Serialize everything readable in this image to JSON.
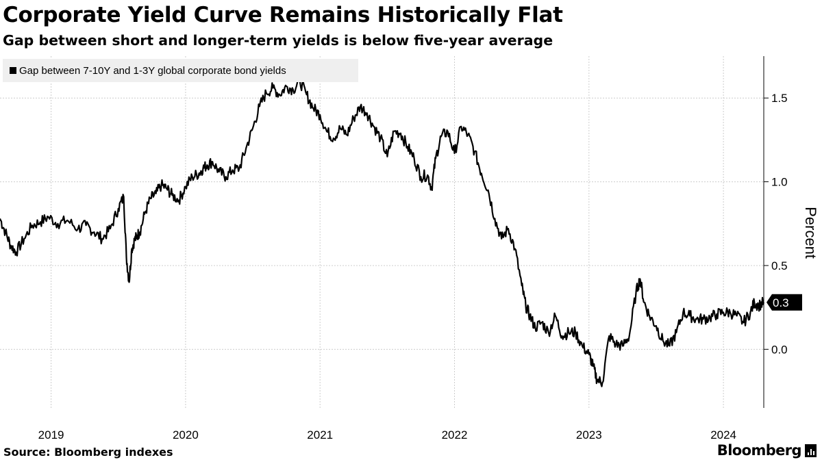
{
  "header": {
    "title": "Corporate Yield Curve Remains Historically Flat",
    "subtitle": "Gap between short and longer-term yields is below five-year average"
  },
  "footer": {
    "source": "Source: Bloomberg indexes",
    "brand": "Bloomberg"
  },
  "colors": {
    "line": "#000000",
    "grid": "#cccccc",
    "legend_bg": "#efefef",
    "background": "#ffffff"
  },
  "chart_data": {
    "type": "line",
    "title": "Corporate Yield Curve Remains Historically Flat",
    "subtitle": "Gap between short and longer-term yields is below five-year average",
    "xlabel": "",
    "ylabel": "Percent",
    "x_range": [
      2018.62,
      2024.3
    ],
    "ylim": [
      -0.35,
      1.75
    ],
    "yticks": [
      0.0,
      0.5,
      1.0,
      1.5
    ],
    "ytick_labels": [
      "0.0",
      "0.5",
      "1.0",
      "1.5"
    ],
    "x_tick_positions": [
      2019.0,
      2020.0,
      2021.0,
      2022.0,
      2023.0,
      2024.0
    ],
    "x_tick_labels": [
      "2019",
      "2020",
      "2021",
      "2022",
      "2023",
      "2024"
    ],
    "grid": true,
    "legend_position": "top-left",
    "last_value_label": "0.3",
    "series": [
      {
        "name": "Gap between 7-10Y and 1-3Y global corporate bond yields",
        "x": [
          2018.62,
          2018.66,
          2018.7,
          2018.74,
          2018.8,
          2018.86,
          2018.92,
          2018.98,
          2019.05,
          2019.12,
          2019.2,
          2019.26,
          2019.32,
          2019.38,
          2019.44,
          2019.5,
          2019.54,
          2019.56,
          2019.58,
          2019.6,
          2019.62,
          2019.64,
          2019.66,
          2019.7,
          2019.74,
          2019.78,
          2019.82,
          2019.86,
          2019.9,
          2019.95,
          2020.0,
          2020.05,
          2020.1,
          2020.13,
          2020.16,
          2020.2,
          2020.25,
          2020.3,
          2020.35,
          2020.4,
          2020.45,
          2020.5,
          2020.55,
          2020.6,
          2020.65,
          2020.7,
          2020.75,
          2020.8,
          2020.85,
          2020.9,
          2020.95,
          2021.0,
          2021.05,
          2021.1,
          2021.15,
          2021.2,
          2021.25,
          2021.3,
          2021.35,
          2021.4,
          2021.45,
          2021.5,
          2021.55,
          2021.6,
          2021.65,
          2021.7,
          2021.75,
          2021.8,
          2021.83,
          2021.86,
          2021.9,
          2021.95,
          2022.0,
          2022.05,
          2022.1,
          2022.15,
          2022.2,
          2022.25,
          2022.3,
          2022.35,
          2022.4,
          2022.45,
          2022.5,
          2022.53,
          2022.56,
          2022.6,
          2022.65,
          2022.7,
          2022.75,
          2022.8,
          2022.85,
          2022.9,
          2022.95,
          2023.0,
          2023.03,
          2023.06,
          2023.1,
          2023.15,
          2023.2,
          2023.25,
          2023.3,
          2023.35,
          2023.38,
          2023.41,
          2023.45,
          2023.5,
          2023.55,
          2023.6,
          2023.65,
          2023.7,
          2023.75,
          2023.8,
          2023.85,
          2023.9,
          2023.95,
          2024.0,
          2024.05,
          2024.1,
          2024.15,
          2024.2,
          2024.23,
          2024.26,
          2024.3
        ],
        "values": [
          0.78,
          0.7,
          0.62,
          0.58,
          0.66,
          0.74,
          0.76,
          0.79,
          0.75,
          0.77,
          0.72,
          0.74,
          0.7,
          0.66,
          0.72,
          0.84,
          0.91,
          0.55,
          0.4,
          0.6,
          0.65,
          0.68,
          0.7,
          0.82,
          0.9,
          0.93,
          0.98,
          0.96,
          0.92,
          0.89,
          0.97,
          1.03,
          1.05,
          1.08,
          1.1,
          1.12,
          1.06,
          1.03,
          1.07,
          1.08,
          1.2,
          1.32,
          1.45,
          1.53,
          1.56,
          1.52,
          1.57,
          1.55,
          1.6,
          1.52,
          1.44,
          1.4,
          1.3,
          1.26,
          1.32,
          1.28,
          1.38,
          1.45,
          1.41,
          1.33,
          1.26,
          1.15,
          1.3,
          1.29,
          1.21,
          1.14,
          1.03,
          1.04,
          0.96,
          1.14,
          1.27,
          1.3,
          1.17,
          1.33,
          1.28,
          1.18,
          1.05,
          0.95,
          0.78,
          0.66,
          0.72,
          0.6,
          0.38,
          0.26,
          0.2,
          0.13,
          0.16,
          0.1,
          0.2,
          0.08,
          0.1,
          0.1,
          0.02,
          -0.03,
          -0.1,
          -0.18,
          -0.2,
          0.08,
          0.03,
          0.02,
          0.08,
          0.34,
          0.42,
          0.28,
          0.2,
          0.14,
          0.05,
          0.02,
          0.1,
          0.22,
          0.2,
          0.18,
          0.18,
          0.19,
          0.21,
          0.22,
          0.22,
          0.2,
          0.16,
          0.22,
          0.28,
          0.26,
          0.28
        ]
      }
    ]
  }
}
